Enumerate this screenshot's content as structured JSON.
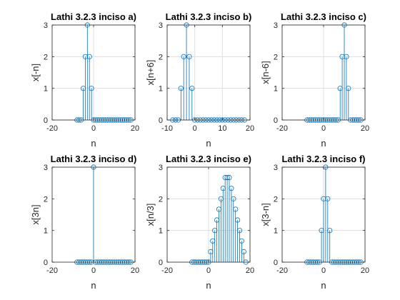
{
  "chart_data": [
    {
      "type": "stem",
      "title": "Lathi 3.2.3 inciso a)",
      "xlabel": "n",
      "ylabel": "x[-n]",
      "xlim": [
        -20,
        20
      ],
      "ylim": [
        0,
        3
      ],
      "xticks": [
        "-20",
        "0",
        "20"
      ],
      "yticks": [
        "0",
        "1",
        "2",
        "3"
      ],
      "grid": true,
      "x": [
        -8,
        -7,
        -6,
        -5,
        -4,
        -3,
        -2,
        -1,
        0,
        1,
        2,
        3,
        4,
        5,
        6,
        7,
        8,
        9,
        10,
        11,
        12,
        13,
        14,
        15,
        16,
        17,
        18
      ],
      "y": [
        0,
        0,
        0,
        1,
        2,
        3,
        2,
        1,
        0,
        0,
        0,
        0,
        0,
        0,
        0,
        0,
        0,
        0,
        0,
        0,
        0,
        0,
        0,
        0,
        0,
        0,
        0
      ]
    },
    {
      "type": "stem",
      "title": "Lathi 3.2.3 inciso b)",
      "xlabel": "n",
      "ylabel": "x[n+6]",
      "xlim": [
        -10,
        20
      ],
      "ylim": [
        0,
        3
      ],
      "xticks": [
        "-10",
        "0",
        "10",
        "20"
      ],
      "yticks": [
        "0",
        "1",
        "2",
        "3"
      ],
      "grid": true,
      "x": [
        -8,
        -7,
        -6,
        -5,
        -4,
        -3,
        -2,
        -1,
        0,
        1,
        2,
        3,
        4,
        5,
        6,
        7,
        8,
        9,
        10,
        11,
        12,
        13,
        14,
        15,
        16,
        17,
        18
      ],
      "y": [
        0,
        0,
        0,
        1,
        2,
        3,
        2,
        1,
        0,
        0,
        0,
        0,
        0,
        0,
        0,
        0,
        0,
        0,
        0,
        0,
        0,
        0,
        0,
        0,
        0,
        0,
        0
      ]
    },
    {
      "type": "stem",
      "title": "Lathi 3.2.3 inciso c)",
      "xlabel": "n",
      "ylabel": "x[n-6]",
      "xlim": [
        -20,
        20
      ],
      "ylim": [
        0,
        3
      ],
      "xticks": [
        "-20",
        "0",
        "20"
      ],
      "yticks": [
        "0",
        "1",
        "2",
        "3"
      ],
      "grid": true,
      "x": [
        -8,
        -7,
        -6,
        -5,
        -4,
        -3,
        -2,
        -1,
        0,
        1,
        2,
        3,
        4,
        5,
        6,
        7,
        8,
        9,
        10,
        11,
        12,
        13,
        14,
        15,
        16,
        17,
        18
      ],
      "y": [
        0,
        0,
        0,
        0,
        0,
        0,
        0,
        0,
        0,
        0,
        0,
        0,
        0,
        0,
        0,
        0,
        1,
        2,
        3,
        2,
        1,
        0,
        0,
        0,
        0,
        0,
        0
      ]
    },
    {
      "type": "stem",
      "title": "Lathi 3.2.3 inciso d)",
      "xlabel": "n",
      "ylabel": "x[3n]",
      "xlim": [
        -20,
        20
      ],
      "ylim": [
        0,
        3
      ],
      "xticks": [
        "-20",
        "0",
        "20"
      ],
      "yticks": [
        "0",
        "1",
        "2",
        "3"
      ],
      "grid": false,
      "x": [
        -8,
        -7,
        -6,
        -5,
        -4,
        -3,
        -2,
        -1,
        0,
        1,
        2,
        3,
        4,
        5,
        6,
        7,
        8,
        9,
        10,
        11,
        12,
        13,
        14,
        15,
        16,
        17,
        18
      ],
      "y": [
        0,
        0,
        0,
        0,
        0,
        0,
        0,
        0,
        3,
        0,
        0,
        0,
        0,
        0,
        0,
        0,
        0,
        0,
        0,
        0,
        0,
        0,
        0,
        0,
        0,
        0,
        0
      ]
    },
    {
      "type": "stem",
      "title": "Lathi 3.2.3 inciso e)",
      "xlabel": "n",
      "ylabel": "x[n/3]",
      "xlim": [
        -20,
        20
      ],
      "ylim": [
        0,
        3
      ],
      "xticks": [
        "-20",
        "0",
        "20"
      ],
      "yticks": [
        "0",
        "1",
        "2",
        "3"
      ],
      "grid": true,
      "x": [
        -8,
        -7,
        -6,
        -5,
        -4,
        -3,
        -2,
        -1,
        0,
        1,
        2,
        3,
        4,
        5,
        6,
        7,
        8,
        9,
        10,
        11,
        12,
        13,
        14,
        15,
        16,
        17,
        18
      ],
      "y": [
        0,
        0,
        0,
        0,
        0,
        0,
        0,
        0,
        0,
        0.33,
        0.67,
        1,
        1.33,
        1.67,
        2,
        2.33,
        2.67,
        2.67,
        2.67,
        2.33,
        2,
        1.67,
        1.33,
        1,
        0.67,
        0.33,
        0
      ]
    },
    {
      "type": "stem",
      "title": "Lathi 3.2.3 inciso f)",
      "xlabel": "n",
      "ylabel": "x[3-n]",
      "xlim": [
        -20,
        20
      ],
      "ylim": [
        0,
        3
      ],
      "xticks": [
        "-20",
        "0",
        "20"
      ],
      "yticks": [
        "0",
        "1",
        "2",
        "3"
      ],
      "grid": true,
      "x": [
        -8,
        -7,
        -6,
        -5,
        -4,
        -3,
        -2,
        -1,
        0,
        1,
        2,
        3,
        4,
        5,
        6,
        7,
        8,
        9,
        10,
        11,
        12,
        13,
        14,
        15,
        16,
        17,
        18
      ],
      "y": [
        0,
        0,
        0,
        0,
        0,
        0,
        0,
        1,
        2,
        3,
        2,
        1,
        0,
        0,
        0,
        0,
        0,
        0,
        0,
        0,
        0,
        0,
        0,
        0,
        0,
        0,
        0
      ]
    }
  ],
  "colors": {
    "stem": "#0072BD",
    "axis": "#262626",
    "grid": "#DFDFDF"
  }
}
